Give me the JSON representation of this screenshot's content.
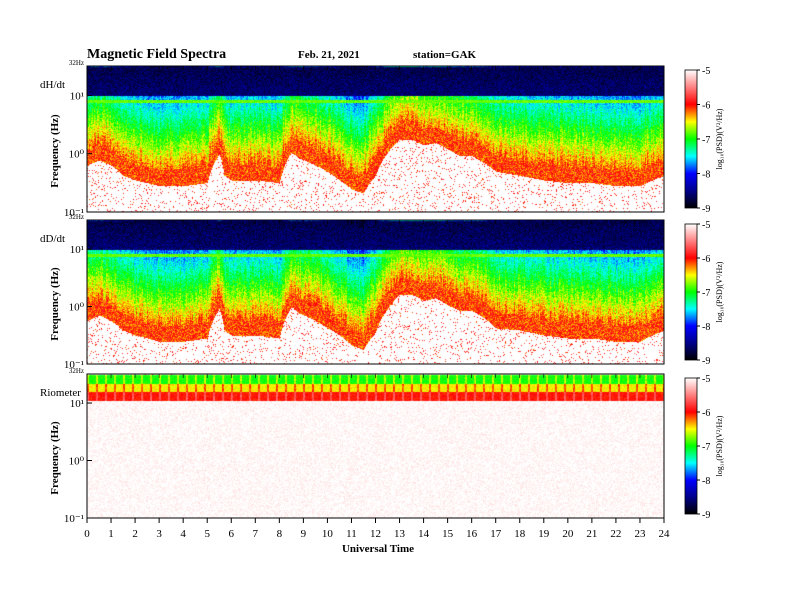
{
  "header": {
    "title": "Magnetic  Field  Spectra",
    "date": "Feb. 21, 2021",
    "station": "station=GAK"
  },
  "x_axis": {
    "label": "Universal  Time",
    "ticks": [
      "0",
      "1",
      "2",
      "3",
      "4",
      "5",
      "6",
      "7",
      "8",
      "9",
      "10",
      "11",
      "12",
      "13",
      "14",
      "15",
      "16",
      "17",
      "18",
      "19",
      "20",
      "21",
      "22",
      "23",
      "24"
    ]
  },
  "colorbar": {
    "label": "log₁₀(PSD)(V²/Hz)",
    "ticks": [
      "-5",
      "-6",
      "-7",
      "-8",
      "-9"
    ],
    "colors": [
      "#ffffff",
      "#ff8080",
      "#ff0000",
      "#ffff00",
      "#00ff00",
      "#00ffff",
      "#0000ff",
      "#00008b",
      "#000000"
    ]
  },
  "chart_data": [
    {
      "type": "heatmap",
      "panel": "dH/dt",
      "title": "",
      "xlabel": "Universal  Time",
      "ylabel": "Frequency  (Hz)",
      "xlim": [
        0,
        24
      ],
      "ylim": [
        0.1,
        32
      ],
      "yscale": "log",
      "top_freq_label": "32Hz",
      "y_tick_labels": [
        "10¹",
        "10⁰",
        "10⁻¹"
      ],
      "color_range": [
        -9,
        -5
      ],
      "colorbar_label": "log₁₀(PSD)(V²/Hz)",
      "noise_floor_freq_hz": {
        "x": [
          0,
          0.5,
          1,
          1.5,
          2,
          2.5,
          3,
          4,
          5,
          5.5,
          5.7,
          6,
          7,
          8,
          8.5,
          8.8,
          9.5,
          10,
          10.5,
          11,
          11.5,
          12,
          12.5,
          13,
          13.5,
          14,
          14.5,
          15,
          15.5,
          16,
          16.5,
          17,
          18,
          19,
          20,
          21,
          22,
          23,
          24
        ],
        "y": [
          0.9,
          1.1,
          0.9,
          0.6,
          0.5,
          0.45,
          0.4,
          0.4,
          0.45,
          1.4,
          0.6,
          0.5,
          0.5,
          0.45,
          1.5,
          1.2,
          0.9,
          0.7,
          0.5,
          0.35,
          0.3,
          0.6,
          1.5,
          2.5,
          2.5,
          2.0,
          2.2,
          1.7,
          1.3,
          1.3,
          1.0,
          0.7,
          0.6,
          0.5,
          0.45,
          0.45,
          0.4,
          0.4,
          0.6
        ]
      },
      "bands": [
        {
          "name": "low-psd band",
          "freq_hz": [
            10,
            32
          ],
          "log_psd": -8.7
        },
        {
          "name": "constant line",
          "freq_hz": [
            7.5,
            8.5
          ],
          "log_psd": -6.8
        }
      ]
    },
    {
      "type": "heatmap",
      "panel": "dD/dt",
      "title": "",
      "xlabel": "Universal  Time",
      "ylabel": "Frequency  (Hz)",
      "xlim": [
        0,
        24
      ],
      "ylim": [
        0.1,
        32
      ],
      "yscale": "log",
      "top_freq_label": "32Hz",
      "y_tick_labels": [
        "10¹",
        "10⁰",
        "10⁻¹"
      ],
      "color_range": [
        -9,
        -5
      ],
      "colorbar_label": "log₁₀(PSD)(V²/Hz)",
      "noise_floor_freq_hz": {
        "x": [
          0,
          0.5,
          1,
          1.5,
          2,
          2.5,
          3,
          4,
          5,
          5.5,
          5.7,
          6,
          7,
          8,
          8.5,
          8.8,
          9.5,
          10,
          10.5,
          11,
          11.5,
          12,
          12.5,
          13,
          13.5,
          14,
          14.5,
          15,
          15.5,
          16,
          16.5,
          17,
          18,
          19,
          20,
          21,
          22,
          23,
          24
        ],
        "y": [
          0.8,
          1.0,
          0.8,
          0.55,
          0.45,
          0.4,
          0.35,
          0.35,
          0.4,
          1.3,
          0.55,
          0.45,
          0.45,
          0.4,
          1.4,
          1.1,
          0.8,
          0.6,
          0.45,
          0.3,
          0.25,
          0.5,
          1.3,
          2.3,
          2.3,
          1.8,
          2.0,
          1.5,
          1.2,
          1.2,
          0.9,
          0.6,
          0.55,
          0.45,
          0.4,
          0.4,
          0.35,
          0.35,
          0.55
        ]
      },
      "bands": [
        {
          "name": "low-psd band",
          "freq_hz": [
            10,
            32
          ],
          "log_psd": -8.7
        },
        {
          "name": "constant line",
          "freq_hz": [
            7.5,
            8.5
          ],
          "log_psd": -6.8
        }
      ]
    },
    {
      "type": "heatmap",
      "panel": "Riometer",
      "title": "",
      "xlabel": "Universal  Time",
      "ylabel": "Frequency  (Hz)",
      "xlim": [
        0,
        24
      ],
      "ylim": [
        0.1,
        32
      ],
      "yscale": "log",
      "top_freq_label": "32Hz",
      "y_tick_labels": [
        "10¹",
        "10⁰",
        "10⁻¹"
      ],
      "color_range": [
        -9,
        -5
      ],
      "colorbar_label": "log₁₀(PSD)(V²/Hz)",
      "bands": [
        {
          "name": "high-freq band",
          "freq_hz": [
            22,
            32
          ],
          "log_psd": -7.0
        },
        {
          "name": "mid band",
          "freq_hz": [
            16,
            22
          ],
          "log_psd": -6.5
        },
        {
          "name": "red band",
          "freq_hz": [
            11,
            16
          ],
          "log_psd": -6.0
        },
        {
          "name": "background",
          "freq_hz": [
            0.1,
            11
          ],
          "log_psd": -5.0
        }
      ]
    }
  ]
}
